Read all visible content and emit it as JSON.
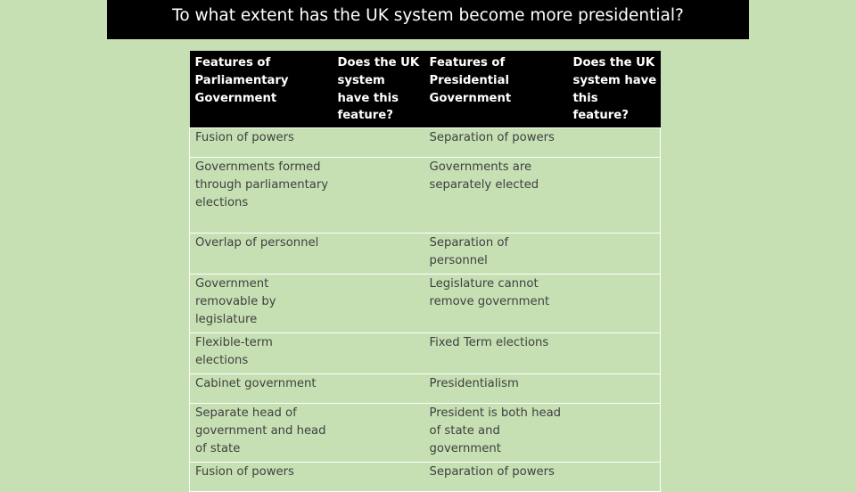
{
  "title": "To what extent has the UK system become more presidential?",
  "table": {
    "headers": {
      "parliamentary": "Features of Parliamentary Government",
      "uk_parliamentary": "Does the UK system have this feature?",
      "presidential": "Features of Presidential Government",
      "uk_presidential": "Does the UK system have this feature?"
    },
    "rows": [
      {
        "parliamentary": "Fusion of powers",
        "uk_parliamentary": "",
        "presidential": "Separation of powers",
        "uk_presidential": ""
      },
      {
        "parliamentary": "Governments formed through parliamentary elections",
        "uk_parliamentary": "",
        "presidential": "Governments are separately elected",
        "uk_presidential": ""
      },
      {
        "parliamentary": "Overlap of personnel",
        "uk_parliamentary": "",
        "presidential": "Separation of personnel",
        "uk_presidential": ""
      },
      {
        "parliamentary": "Government removable by legislature",
        "uk_parliamentary": "",
        "presidential": "Legislature cannot remove government",
        "uk_presidential": ""
      },
      {
        "parliamentary": "Flexible-term elections",
        "uk_parliamentary": "",
        "presidential": "Fixed Term elections",
        "uk_presidential": ""
      },
      {
        "parliamentary": "Cabinet government",
        "uk_parliamentary": "",
        "presidential": "Presidentialism",
        "uk_presidential": ""
      },
      {
        "parliamentary": "Separate head of government and head of state",
        "uk_parliamentary": "",
        "presidential": "President is both head of state and government",
        "uk_presidential": ""
      },
      {
        "parliamentary": "Fusion of powers",
        "uk_parliamentary": "",
        "presidential": "Separation of powers",
        "uk_presidential": ""
      }
    ]
  },
  "colors": {
    "background": "#c6e0b4",
    "title_bar": "#000000",
    "header": "#000000",
    "cell_text": "#404040",
    "grid": "#ffffff"
  }
}
